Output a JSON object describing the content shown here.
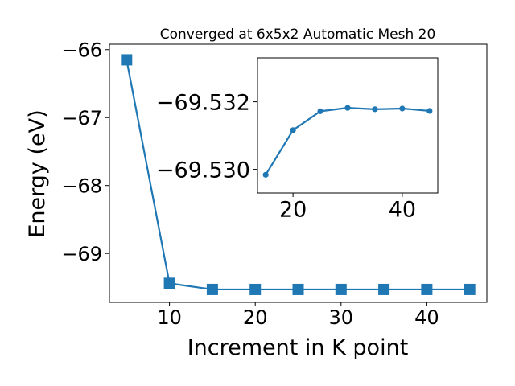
{
  "chart_data": [
    {
      "type": "line",
      "title": "Converged at 6x5x2 Automatic Mesh 20",
      "xlabel": "Increment in K point",
      "ylabel": "Energy (eV)",
      "x": [
        5,
        10,
        15,
        20,
        25,
        30,
        35,
        40,
        45
      ],
      "series": [
        {
          "values": [
            -66.15,
            -69.44,
            -69.53,
            -69.53,
            -69.53,
            -69.53,
            -69.53,
            -69.53,
            -69.53
          ],
          "marker": "square",
          "color": "#1f77b4"
        }
      ],
      "xticks": [
        10,
        20,
        30,
        40
      ],
      "yticks": [
        -69,
        -68,
        -67,
        -66
      ],
      "xtick_labels": [
        "10",
        "20",
        "30",
        "40"
      ],
      "ytick_labels": [
        "−69",
        "−68",
        "−67",
        "−66"
      ],
      "xlim": [
        3.0,
        47.0
      ],
      "ylim": [
        -69.72,
        -65.92
      ],
      "grid": false
    },
    {
      "type": "line",
      "title": "",
      "xlabel": "",
      "ylabel": "",
      "x": [
        15,
        20,
        25,
        30,
        35,
        40,
        45
      ],
      "series": [
        {
          "values": [
            -69.52984,
            -69.53116,
            -69.53172,
            -69.53182,
            -69.53178,
            -69.5318,
            -69.53173
          ],
          "marker": "circle",
          "color": "#1f77b4"
        }
      ],
      "xticks": [
        20,
        40
      ],
      "yticks": [
        -69.532,
        -69.53
      ],
      "xtick_labels": [
        "20",
        "40"
      ],
      "ytick_labels": [
        "−69.532",
        "−69.530"
      ],
      "xlim": [
        13.5,
        46.5
      ],
      "ylim": [
        -69.5293,
        -69.5333
      ],
      "grid": false
    }
  ]
}
